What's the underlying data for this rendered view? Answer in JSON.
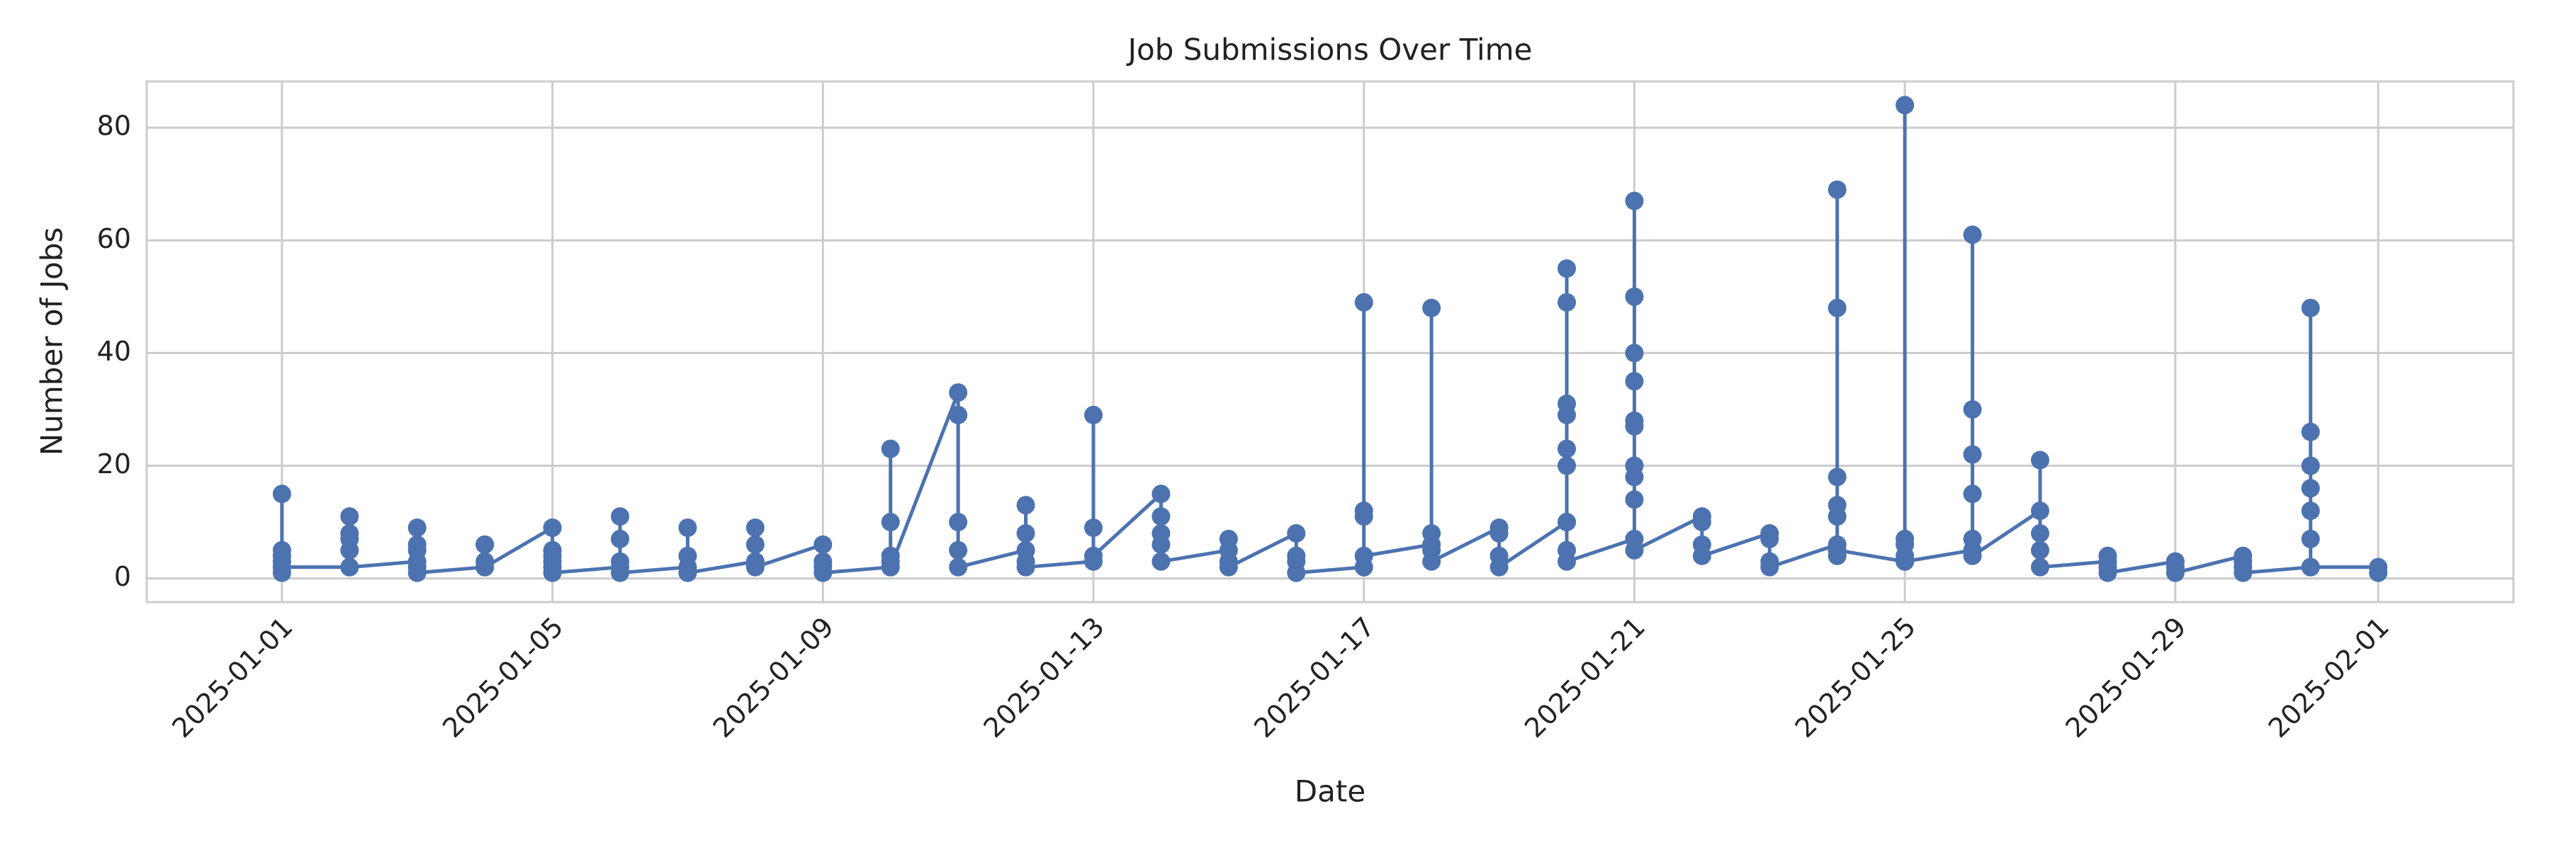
{
  "chart_data": {
    "type": "line",
    "title": "Job Submissions Over Time",
    "xlabel": "Date",
    "ylabel": "Number of Jobs",
    "x": [
      "2025-01-01",
      "2025-01-01",
      "2025-01-01",
      "2025-01-01",
      "2025-01-01",
      "2025-01-01",
      "2025-01-01",
      "2025-01-02",
      "2025-01-02",
      "2025-01-02",
      "2025-01-02",
      "2025-01-02",
      "2025-01-02",
      "2025-01-03",
      "2025-01-03",
      "2025-01-03",
      "2025-01-03",
      "2025-01-03",
      "2025-01-03",
      "2025-01-04",
      "2025-01-04",
      "2025-01-04",
      "2025-01-04",
      "2025-01-04",
      "2025-01-05",
      "2025-01-05",
      "2025-01-05",
      "2025-01-05",
      "2025-01-05",
      "2025-01-05",
      "2025-01-05",
      "2025-01-06",
      "2025-01-06",
      "2025-01-06",
      "2025-01-06",
      "2025-01-06",
      "2025-01-07",
      "2025-01-07",
      "2025-01-07",
      "2025-01-07",
      "2025-01-08",
      "2025-01-08",
      "2025-01-08",
      "2025-01-08",
      "2025-01-09",
      "2025-01-09",
      "2025-01-09",
      "2025-01-09",
      "2025-01-10",
      "2025-01-10",
      "2025-01-10",
      "2025-01-10",
      "2025-01-10",
      "2025-01-10",
      "2025-01-11",
      "2025-01-11",
      "2025-01-11",
      "2025-01-11",
      "2025-01-11",
      "2025-01-12",
      "2025-01-12",
      "2025-01-12",
      "2025-01-12",
      "2025-01-12",
      "2025-01-13",
      "2025-01-13",
      "2025-01-13",
      "2025-01-13",
      "2025-01-14",
      "2025-01-14",
      "2025-01-14",
      "2025-01-14",
      "2025-01-14",
      "2025-01-15",
      "2025-01-15",
      "2025-01-15",
      "2025-01-15",
      "2025-01-16",
      "2025-01-16",
      "2025-01-16",
      "2025-01-16",
      "2025-01-17",
      "2025-01-17",
      "2025-01-17",
      "2025-01-17",
      "2025-01-17",
      "2025-01-18",
      "2025-01-18",
      "2025-01-18",
      "2025-01-18",
      "2025-01-18",
      "2025-01-19",
      "2025-01-19",
      "2025-01-19",
      "2025-01-19",
      "2025-01-20",
      "2025-01-20",
      "2025-01-20",
      "2025-01-20",
      "2025-01-20",
      "2025-01-20",
      "2025-01-20",
      "2025-01-20",
      "2025-01-20",
      "2025-01-20",
      "2025-01-21",
      "2025-01-21",
      "2025-01-21",
      "2025-01-21",
      "2025-01-21",
      "2025-01-21",
      "2025-01-21",
      "2025-01-21",
      "2025-01-21",
      "2025-01-21",
      "2025-01-21",
      "2025-01-22",
      "2025-01-22",
      "2025-01-22",
      "2025-01-22",
      "2025-01-23",
      "2025-01-23",
      "2025-01-23",
      "2025-01-23",
      "2025-01-24",
      "2025-01-24",
      "2025-01-24",
      "2025-01-24",
      "2025-01-24",
      "2025-01-24",
      "2025-01-24",
      "2025-01-24",
      "2025-01-25",
      "2025-01-25",
      "2025-01-25",
      "2025-01-25",
      "2025-01-25",
      "2025-01-25",
      "2025-01-26",
      "2025-01-26",
      "2025-01-26",
      "2025-01-26",
      "2025-01-26",
      "2025-01-26",
      "2025-01-26",
      "2025-01-27",
      "2025-01-27",
      "2025-01-27",
      "2025-01-27",
      "2025-01-27",
      "2025-01-28",
      "2025-01-28",
      "2025-01-28",
      "2025-01-28",
      "2025-01-29",
      "2025-01-29",
      "2025-01-29",
      "2025-01-29",
      "2025-01-30",
      "2025-01-30",
      "2025-01-30",
      "2025-01-30",
      "2025-01-31",
      "2025-01-31",
      "2025-01-31",
      "2025-01-31",
      "2025-01-31",
      "2025-01-31",
      "2025-01-31",
      "2025-01-31",
      "2025-02-01",
      "2025-02-01"
    ],
    "series": [
      {
        "color": "#4c72b0",
        "values": [
          1,
          4,
          2,
          5,
          15,
          3,
          2,
          2,
          8,
          11,
          5,
          7,
          2,
          3,
          9,
          5,
          2,
          6,
          1,
          2,
          6,
          3,
          6,
          2,
          9,
          3,
          5,
          2,
          9,
          4,
          1,
          2,
          7,
          11,
          3,
          1,
          2,
          9,
          4,
          1,
          3,
          6,
          9,
          2,
          6,
          2,
          3,
          1,
          2,
          4,
          10,
          3,
          23,
          2,
          33,
          10,
          29,
          5,
          2,
          5,
          3,
          8,
          13,
          2,
          3,
          29,
          9,
          4,
          15,
          6,
          11,
          8,
          3,
          5,
          3,
          7,
          2,
          8,
          3,
          4,
          1,
          2,
          12,
          49,
          11,
          4,
          6,
          48,
          5,
          8,
          3,
          9,
          4,
          8,
          2,
          10,
          5,
          23,
          55,
          49,
          31,
          29,
          20,
          10,
          3,
          7,
          18,
          40,
          20,
          28,
          67,
          50,
          14,
          35,
          27,
          5,
          11,
          6,
          10,
          4,
          8,
          3,
          7,
          2,
          6,
          4,
          13,
          48,
          69,
          18,
          11,
          5,
          3,
          4,
          84,
          6,
          7,
          3,
          5,
          7,
          22,
          61,
          30,
          15,
          4,
          12,
          21,
          8,
          5,
          2,
          3,
          4,
          2,
          1,
          3,
          2,
          3,
          1,
          4,
          2,
          3,
          1,
          2,
          48,
          26,
          20,
          16,
          12,
          7,
          2,
          2,
          1
        ]
      }
    ],
    "markers": true,
    "xlim": [
      "2024-12-30",
      "2025-02-03"
    ],
    "xticks": [
      "2025-01-01",
      "2025-01-05",
      "2025-01-09",
      "2025-01-13",
      "2025-01-17",
      "2025-01-21",
      "2025-01-25",
      "2025-01-29",
      "2025-02-01"
    ],
    "ylim": [
      -4.2,
      88.2
    ],
    "yticks": [
      0,
      20,
      40,
      60,
      80
    ],
    "grid": true
  }
}
